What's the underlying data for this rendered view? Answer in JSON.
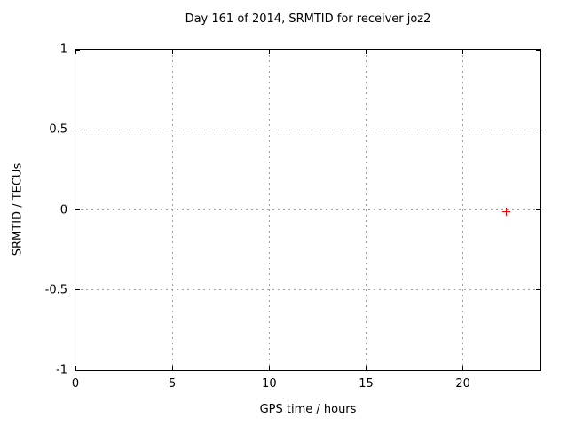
{
  "colors": {
    "background": "#ffffff",
    "axis": "#000000",
    "grid": "#a0a0a0",
    "text": "#000000",
    "marker": "#ff0000"
  },
  "chart_data": {
    "type": "scatter",
    "title": "Day 161 of 2014, SRMTID for receiver joz2",
    "xlabel": "GPS time / hours",
    "ylabel": "SRMTID / TECUs",
    "xlim": [
      0,
      24
    ],
    "ylim": [
      -1,
      1
    ],
    "xticks": {
      "values": [
        0,
        5,
        10,
        15,
        20
      ],
      "labels": [
        "0",
        "5",
        "10",
        "15",
        "20"
      ]
    },
    "yticks": {
      "values": [
        -1,
        -0.5,
        0,
        0.5,
        1
      ],
      "labels": [
        "-1",
        "-0.5",
        "0",
        "0.5",
        "1"
      ]
    },
    "grid": true,
    "legend_position": "none",
    "series": [
      {
        "name": "SRMTID",
        "marker": "plus",
        "color": "#ff0000",
        "points": [
          {
            "x": 22.25,
            "y": -0.01
          }
        ]
      }
    ]
  }
}
